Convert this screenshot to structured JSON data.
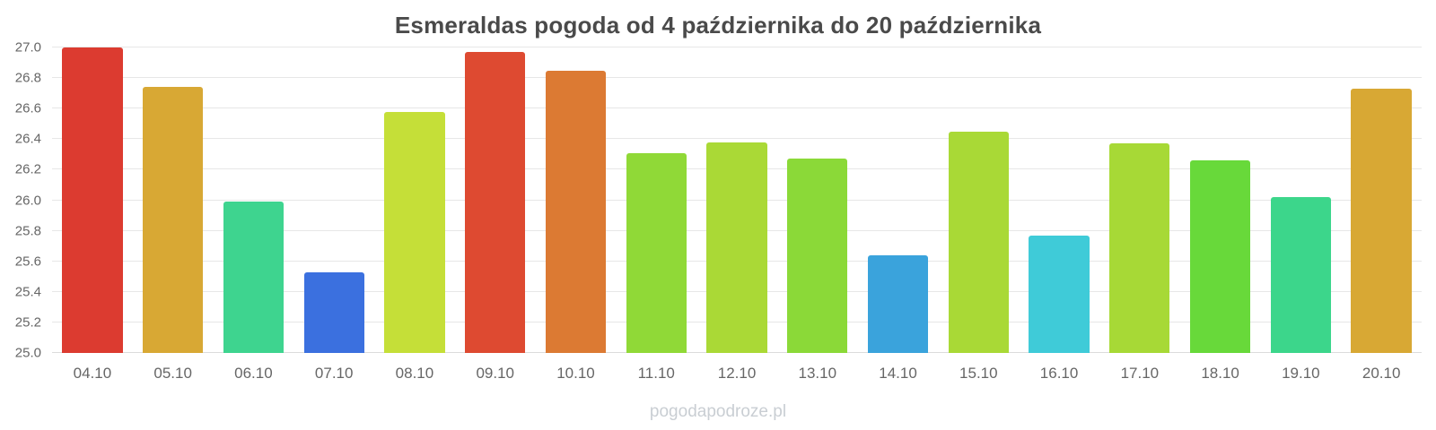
{
  "footer": "pogodapodroze.pl",
  "chart_data": {
    "type": "bar",
    "title": "Esmeraldas pogoda od 4 października do 20 października",
    "categories": [
      "04.10",
      "05.10",
      "06.10",
      "07.10",
      "08.10",
      "09.10",
      "10.10",
      "11.10",
      "12.10",
      "13.10",
      "14.10",
      "15.10",
      "16.10",
      "17.10",
      "18.10",
      "19.10",
      "20.10"
    ],
    "values": [
      27.0,
      26.74,
      25.99,
      25.53,
      26.58,
      26.97,
      26.85,
      26.31,
      26.38,
      26.27,
      25.64,
      26.45,
      25.77,
      26.37,
      26.26,
      26.02,
      26.73
    ],
    "bar_colors": [
      "#dc3b30",
      "#d8a834",
      "#3ed48f",
      "#3b70df",
      "#c5df38",
      "#de4a31",
      "#dc7a33",
      "#90d937",
      "#aad936",
      "#8bd938",
      "#3aa3dc",
      "#a9d936",
      "#3fcbd8",
      "#a7d936",
      "#68d93a",
      "#3cd68b",
      "#d8a834"
    ],
    "xlabel": "",
    "ylabel": "",
    "ylim": [
      25.0,
      27.0
    ],
    "yticks": [
      25.0,
      25.2,
      25.4,
      25.6,
      25.8,
      26.0,
      26.2,
      26.4,
      26.6,
      26.8,
      27.0
    ],
    "grid": true,
    "legend": false
  },
  "colors": {
    "title_text": "#4a4a4a",
    "axis_text": "#666666",
    "gridline": "#e7e7e7",
    "watermark_text": "#c9ced3",
    "background": "#ffffff"
  }
}
